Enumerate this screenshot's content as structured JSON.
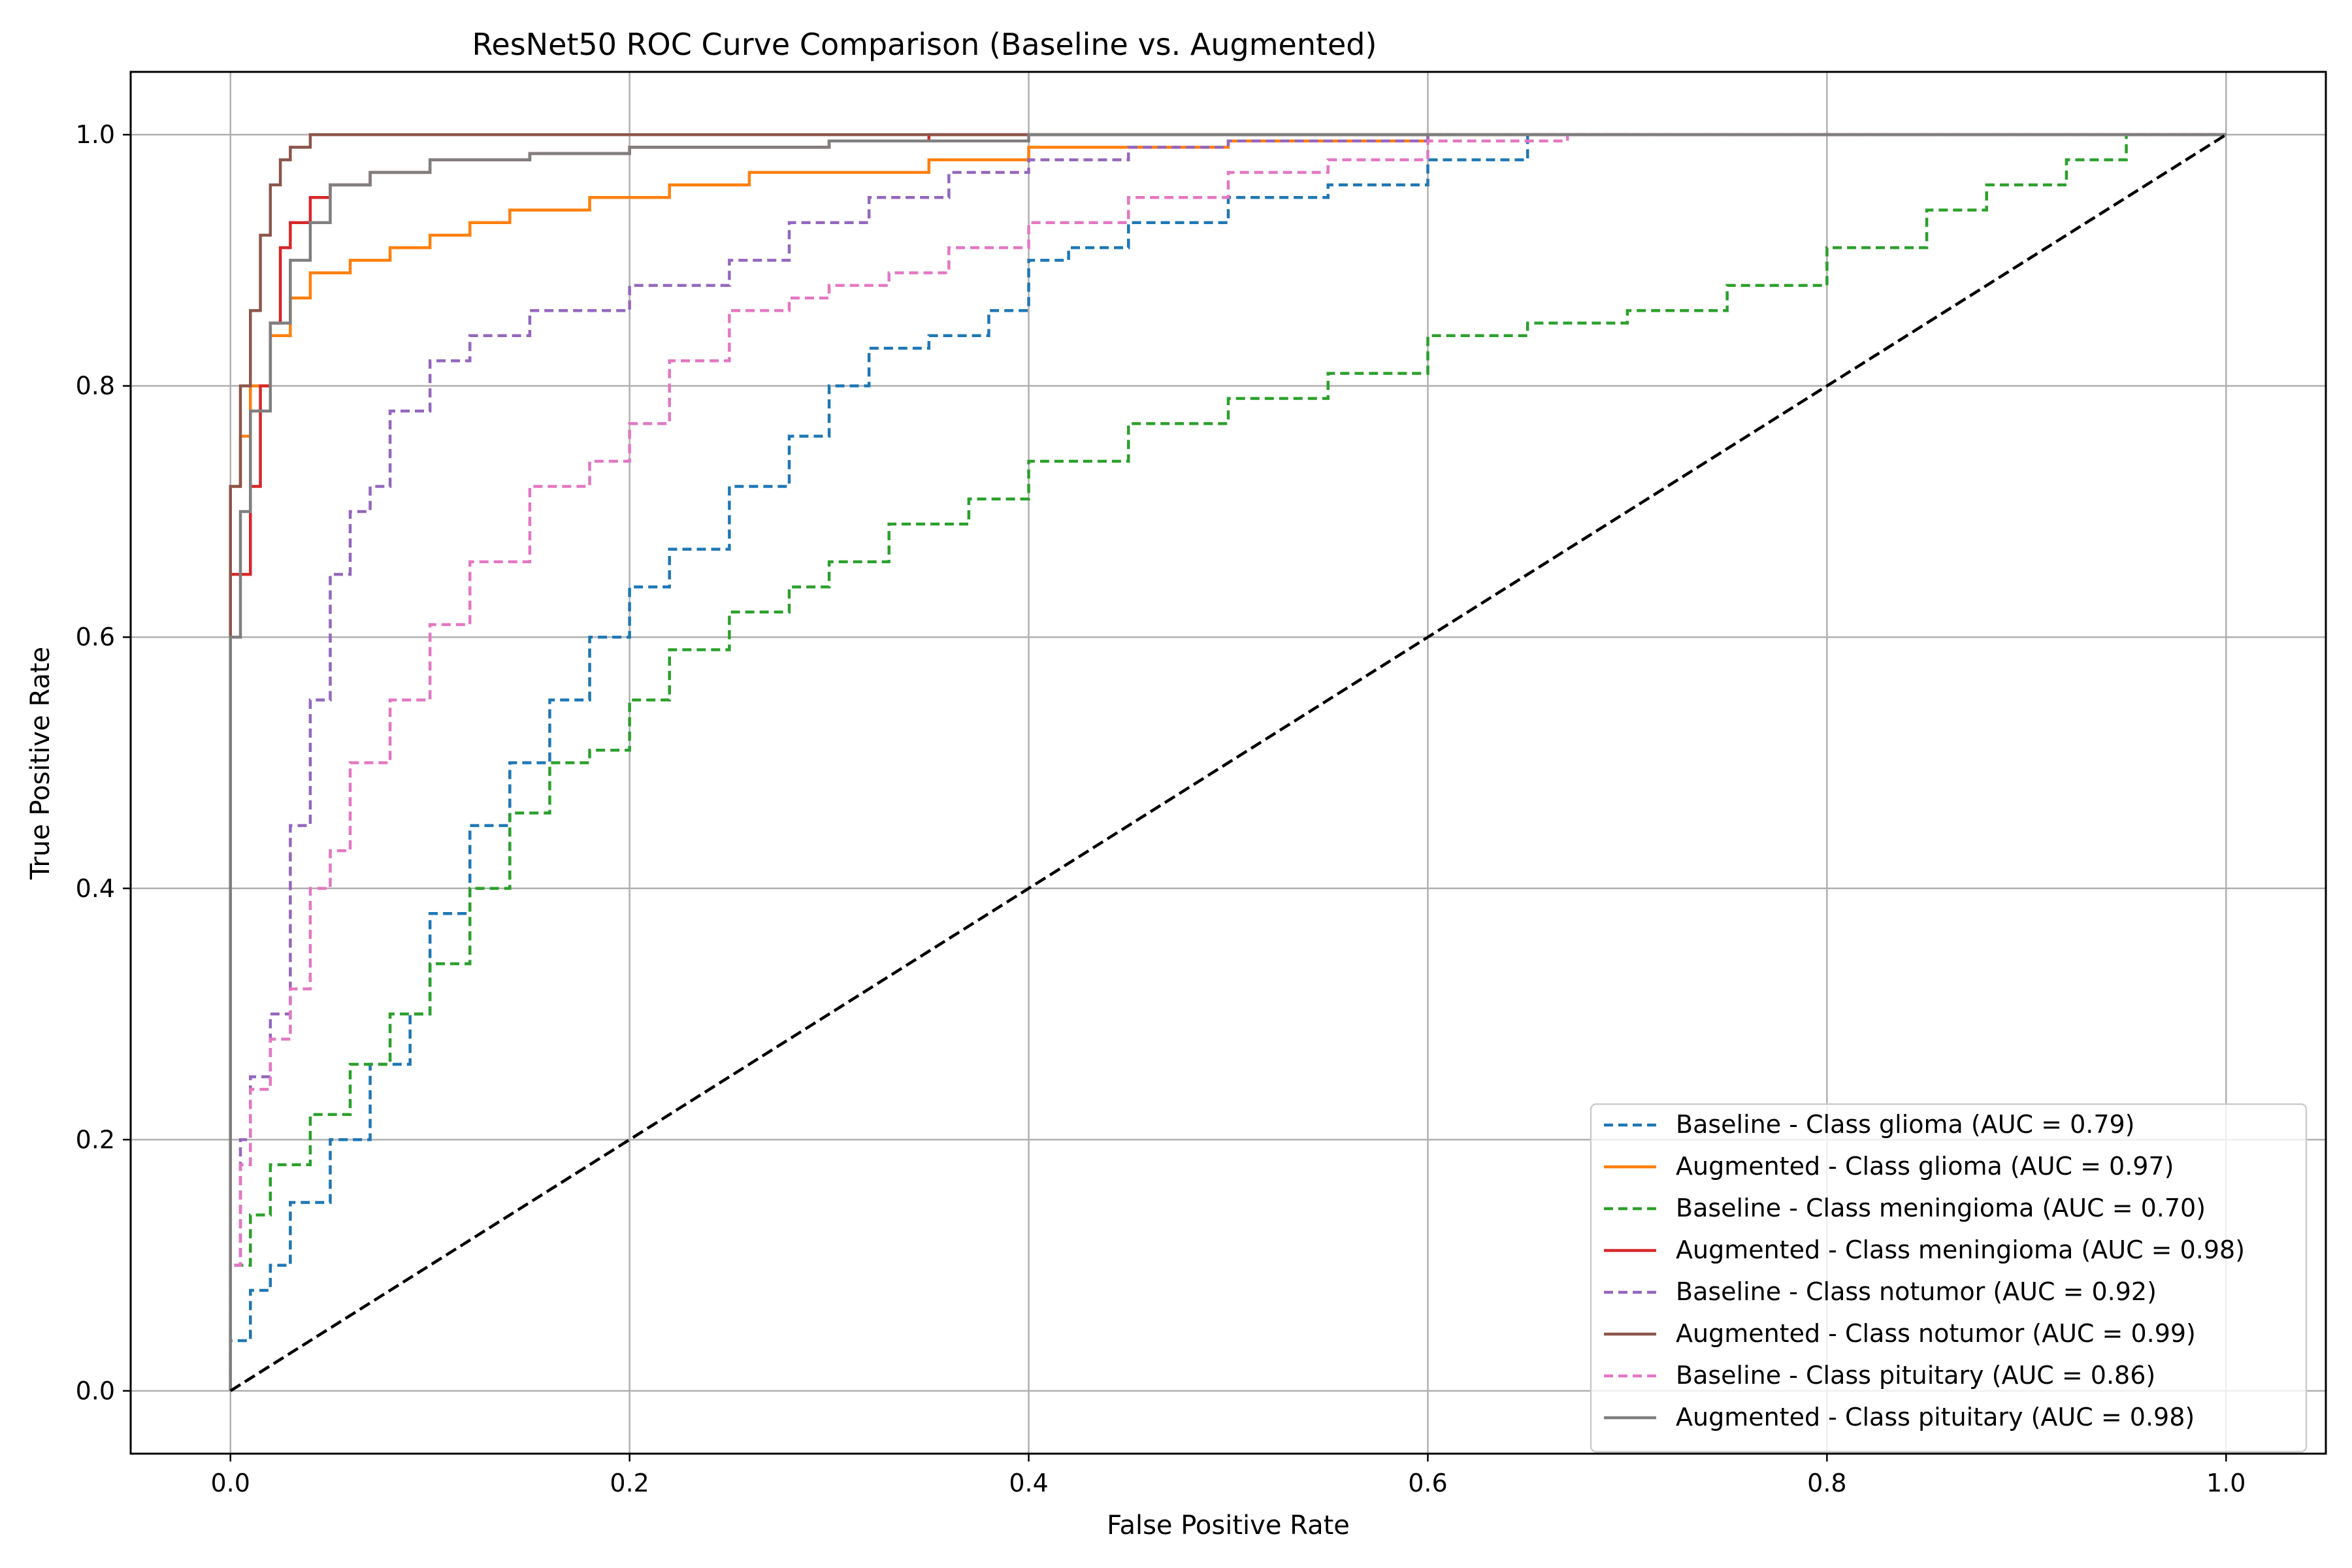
{
  "chart_data": {
    "type": "line",
    "title": "ResNet50 ROC Curve Comparison (Baseline vs. Augmented)",
    "xlabel": "False Positive Rate",
    "ylabel": "True Positive Rate",
    "xlim": [
      -0.05,
      1.05
    ],
    "ylim": [
      -0.05,
      1.05
    ],
    "xticks": [
      "0.0",
      "0.2",
      "0.4",
      "0.6",
      "0.8",
      "1.0"
    ],
    "yticks": [
      "0.0",
      "0.2",
      "0.4",
      "0.6",
      "0.8",
      "1.0"
    ],
    "grid": true,
    "legend_position": "lower-right",
    "series": [
      {
        "name": "Baseline - Class glioma (AUC = 0.79)",
        "color": "#1f77b4",
        "dash": true,
        "x": [
          0,
          0.01,
          0.02,
          0.03,
          0.05,
          0.07,
          0.09,
          0.1,
          0.12,
          0.14,
          0.16,
          0.18,
          0.2,
          0.22,
          0.25,
          0.28,
          0.3,
          0.32,
          0.35,
          0.38,
          0.4,
          0.42,
          0.45,
          0.5,
          0.55,
          0.6,
          0.65,
          0.71
        ],
        "y": [
          0,
          0.04,
          0.08,
          0.1,
          0.15,
          0.2,
          0.26,
          0.3,
          0.38,
          0.45,
          0.5,
          0.55,
          0.6,
          0.64,
          0.67,
          0.72,
          0.76,
          0.8,
          0.83,
          0.84,
          0.86,
          0.9,
          0.91,
          0.93,
          0.95,
          0.96,
          0.98,
          1.0
        ]
      },
      {
        "name": "Augmented - Class glioma (AUC = 0.97)",
        "color": "#ff7f0e",
        "dash": false,
        "x": [
          0,
          0.0,
          0.005,
          0.01,
          0.02,
          0.03,
          0.04,
          0.06,
          0.08,
          0.1,
          0.12,
          0.14,
          0.18,
          0.22,
          0.26,
          0.3,
          0.35,
          0.4,
          0.5,
          0.6,
          0.7,
          1.0
        ],
        "y": [
          0,
          0.65,
          0.72,
          0.76,
          0.8,
          0.84,
          0.87,
          0.89,
          0.9,
          0.91,
          0.92,
          0.93,
          0.94,
          0.95,
          0.96,
          0.97,
          0.97,
          0.98,
          0.99,
          0.995,
          1.0,
          1.0
        ]
      },
      {
        "name": "Baseline - Class meningioma (AUC = 0.70)",
        "color": "#2ca02c",
        "dash": true,
        "x": [
          0,
          0.01,
          0.02,
          0.04,
          0.06,
          0.08,
          0.1,
          0.12,
          0.14,
          0.16,
          0.18,
          0.2,
          0.22,
          0.25,
          0.28,
          0.3,
          0.33,
          0.37,
          0.4,
          0.45,
          0.5,
          0.55,
          0.6,
          0.65,
          0.7,
          0.75,
          0.8,
          0.85,
          0.88,
          0.92,
          0.95,
          1.0
        ],
        "y": [
          0,
          0.1,
          0.14,
          0.18,
          0.22,
          0.26,
          0.3,
          0.34,
          0.4,
          0.46,
          0.5,
          0.51,
          0.55,
          0.59,
          0.62,
          0.64,
          0.66,
          0.69,
          0.71,
          0.74,
          0.77,
          0.79,
          0.81,
          0.84,
          0.85,
          0.86,
          0.88,
          0.91,
          0.94,
          0.96,
          0.98,
          1.0
        ]
      },
      {
        "name": "Augmented - Class meningioma (AUC = 0.98)",
        "color": "#d62728",
        "dash": false,
        "x": [
          0,
          0.0,
          0.01,
          0.015,
          0.02,
          0.025,
          0.03,
          0.04,
          0.05,
          0.07,
          0.1,
          0.15,
          0.2,
          0.3,
          0.35,
          0.42,
          1.0
        ],
        "y": [
          0,
          0.42,
          0.65,
          0.72,
          0.8,
          0.85,
          0.91,
          0.93,
          0.95,
          0.96,
          0.97,
          0.98,
          0.985,
          0.99,
          0.995,
          1.0,
          1.0
        ]
      },
      {
        "name": "Baseline - Class notumor (AUC = 0.92)",
        "color": "#9467bd",
        "dash": true,
        "x": [
          0,
          0.005,
          0.01,
          0.02,
          0.03,
          0.04,
          0.05,
          0.06,
          0.07,
          0.08,
          0.1,
          0.12,
          0.15,
          0.2,
          0.25,
          0.28,
          0.32,
          0.36,
          0.4,
          0.45,
          0.5,
          0.6,
          0.67,
          1.0
        ],
        "y": [
          0,
          0.1,
          0.2,
          0.25,
          0.3,
          0.45,
          0.55,
          0.65,
          0.7,
          0.72,
          0.78,
          0.82,
          0.84,
          0.86,
          0.88,
          0.9,
          0.93,
          0.95,
          0.97,
          0.98,
          0.99,
          0.995,
          1.0,
          1.0
        ]
      },
      {
        "name": "Augmented - Class notumor (AUC = 0.99)",
        "color": "#8c564b",
        "dash": false,
        "x": [
          0,
          0.0,
          0.005,
          0.01,
          0.015,
          0.02,
          0.025,
          0.03,
          0.04,
          0.05,
          0.1,
          0.2,
          0.4,
          1.0
        ],
        "y": [
          0,
          0.55,
          0.72,
          0.8,
          0.86,
          0.92,
          0.96,
          0.98,
          0.99,
          1.0,
          1.0,
          1.0,
          1.0,
          1.0
        ]
      },
      {
        "name": "Baseline - Class pituitary (AUC = 0.86)",
        "color": "#e377c2",
        "dash": true,
        "x": [
          0,
          0.005,
          0.01,
          0.02,
          0.03,
          0.04,
          0.05,
          0.06,
          0.08,
          0.1,
          0.12,
          0.15,
          0.18,
          0.2,
          0.22,
          0.25,
          0.28,
          0.3,
          0.33,
          0.36,
          0.4,
          0.45,
          0.5,
          0.55,
          0.6,
          0.67,
          1.0
        ],
        "y": [
          0,
          0.1,
          0.18,
          0.24,
          0.28,
          0.32,
          0.4,
          0.43,
          0.5,
          0.55,
          0.61,
          0.66,
          0.72,
          0.74,
          0.77,
          0.82,
          0.86,
          0.87,
          0.88,
          0.89,
          0.91,
          0.93,
          0.95,
          0.97,
          0.98,
          0.995,
          1.0
        ]
      },
      {
        "name": "Augmented - Class pituitary (AUC = 0.98)",
        "color": "#7f7f7f",
        "dash": false,
        "x": [
          0,
          0.0,
          0.005,
          0.01,
          0.02,
          0.03,
          0.04,
          0.05,
          0.07,
          0.1,
          0.15,
          0.2,
          0.3,
          0.4,
          0.6,
          1.0
        ],
        "y": [
          0,
          0.3,
          0.6,
          0.7,
          0.78,
          0.85,
          0.9,
          0.93,
          0.96,
          0.97,
          0.98,
          0.985,
          0.99,
          0.995,
          1.0,
          1.0
        ]
      },
      {
        "name": "",
        "color": "#000000",
        "dash": true,
        "diagonal": true,
        "x": [
          0,
          1
        ],
        "y": [
          0,
          1
        ]
      }
    ]
  }
}
